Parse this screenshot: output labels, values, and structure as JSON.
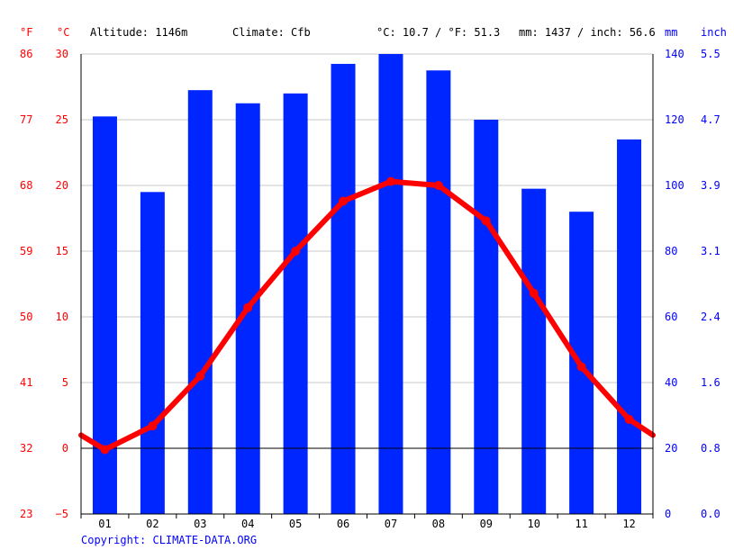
{
  "header": {
    "f_unit": "°F",
    "c_unit": "°C",
    "altitude": "Altitude: 1146m",
    "climate": "Climate: Cfb",
    "temp_avg": "°C: 10.7 / °F: 51.3",
    "precip_avg": "mm: 1437 / inch: 56.6",
    "mm_unit": "mm",
    "inch_unit": "inch"
  },
  "copyright": "Copyright: CLIMATE-DATA.ORG",
  "colors": {
    "precip": "#0026ff",
    "temp": "#ff0000",
    "left_axis": "#ff0000",
    "right_axis": "#0000ff",
    "grid": "#c8c8c8"
  },
  "chart_data": {
    "type": "bar",
    "categories": [
      "01",
      "02",
      "03",
      "04",
      "05",
      "06",
      "07",
      "08",
      "09",
      "10",
      "11",
      "12"
    ],
    "series": [
      {
        "unit": "mm",
        "type": "bar",
        "axis": "right",
        "values": [
          121,
          98,
          129,
          125,
          128,
          137,
          140,
          135,
          120,
          99,
          92,
          114
        ]
      },
      {
        "unit": "°C",
        "type": "line",
        "axis": "left",
        "values": [
          -0.1,
          1.7,
          5.5,
          10.7,
          15.0,
          18.8,
          20.3,
          20.0,
          17.3,
          11.8,
          6.2,
          2.2
        ],
        "edge_values": [
          1.0,
          1.0
        ]
      }
    ],
    "left_axis": {
      "unit": "°C",
      "ticks": [
        "30",
        "25",
        "20",
        "15",
        "10",
        "5",
        "0",
        "−5"
      ],
      "ylim": [
        -5,
        30
      ]
    },
    "left_axis_f": {
      "unit": "°F",
      "ticks": [
        "86",
        "77",
        "68",
        "59",
        "50",
        "41",
        "32",
        "23"
      ]
    },
    "right_axis": {
      "unit": "mm",
      "ticks": [
        "140",
        "120",
        "100",
        "80",
        "60",
        "40",
        "20",
        "0"
      ],
      "ylim": [
        0,
        140
      ]
    },
    "right_axis_inch": {
      "unit": "inch",
      "ticks": [
        "5.5",
        "4.7",
        "3.9",
        "3.1",
        "2.4",
        "1.6",
        "0.8",
        "0.0"
      ]
    },
    "grid": true,
    "legend": "none"
  }
}
